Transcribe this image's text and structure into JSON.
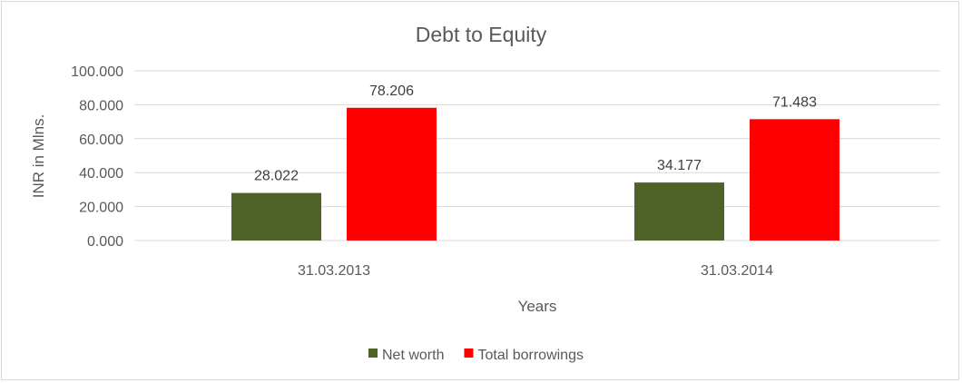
{
  "chart_data": {
    "type": "bar",
    "title": "Debt to Equity",
    "xlabel": "Years",
    "ylabel": "INR in Mlns.",
    "categories": [
      "31.03.2013",
      "31.03.2014"
    ],
    "series": [
      {
        "name": "Net worth",
        "values": [
          28.022,
          34.177
        ],
        "labels": [
          "28.022",
          "34.177"
        ],
        "color": "#4f6228"
      },
      {
        "name": "Total borrowings",
        "values": [
          78.206,
          71.483
        ],
        "labels": [
          "78.206",
          "71.483"
        ],
        "color": "#ff0000"
      }
    ],
    "ylim": [
      0,
      100
    ],
    "yticks": [
      "0.000",
      "20.000",
      "40.000",
      "60.000",
      "80.000",
      "100.000"
    ],
    "grid": true,
    "legend": "bottom"
  }
}
